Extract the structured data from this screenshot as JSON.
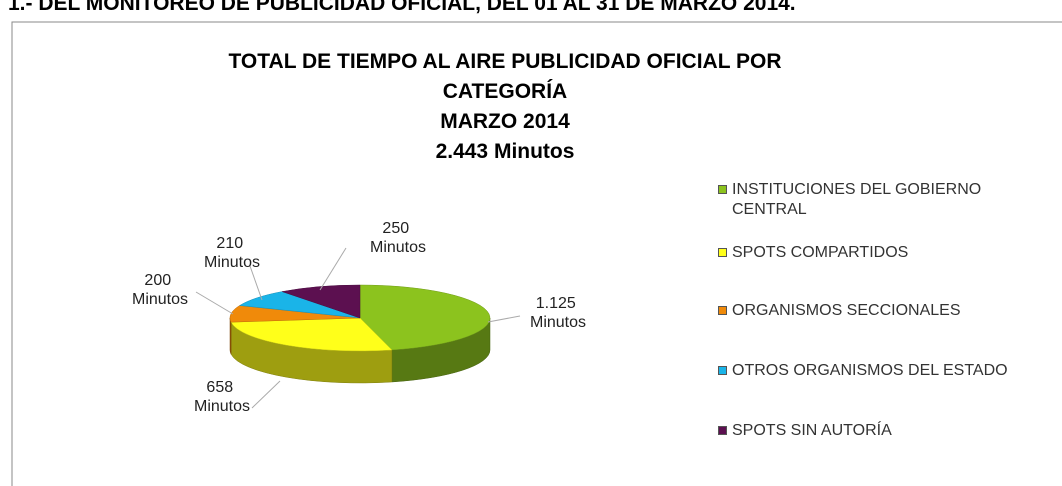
{
  "header": "1.- DEL MONITOREO DE PUBLICIDAD OFICIAL, DEL 01 AL 31 DE MARZO 2014.",
  "chart_data": {
    "type": "pie3d",
    "title": [
      "TOTAL DE TIEMPO AL AIRE PUBLICIDAD OFICIAL POR",
      "CATEGORÍA",
      "MARZO 2014",
      "2.443 Minutos"
    ],
    "categories": [
      "INSTITUCIONES DEL GOBIERNO CENTRAL",
      "SPOTS COMPARTIDOS",
      "ORGANISMOS SECCIONALES",
      "OTROS ORGANISMOS DEL ESTADO",
      "SPOTS SIN AUTORÍA"
    ],
    "values": [
      1125,
      658,
      200,
      210,
      250
    ],
    "value_labels": [
      "1.125 Minutos",
      "658 Minutos",
      "200 Minutos",
      "210 Minutos",
      "250 Minutos"
    ],
    "colors": [
      "#8cc31e",
      "#ffff1a",
      "#f08a0a",
      "#1ab4e8",
      "#5c1050"
    ],
    "legend": "right"
  }
}
